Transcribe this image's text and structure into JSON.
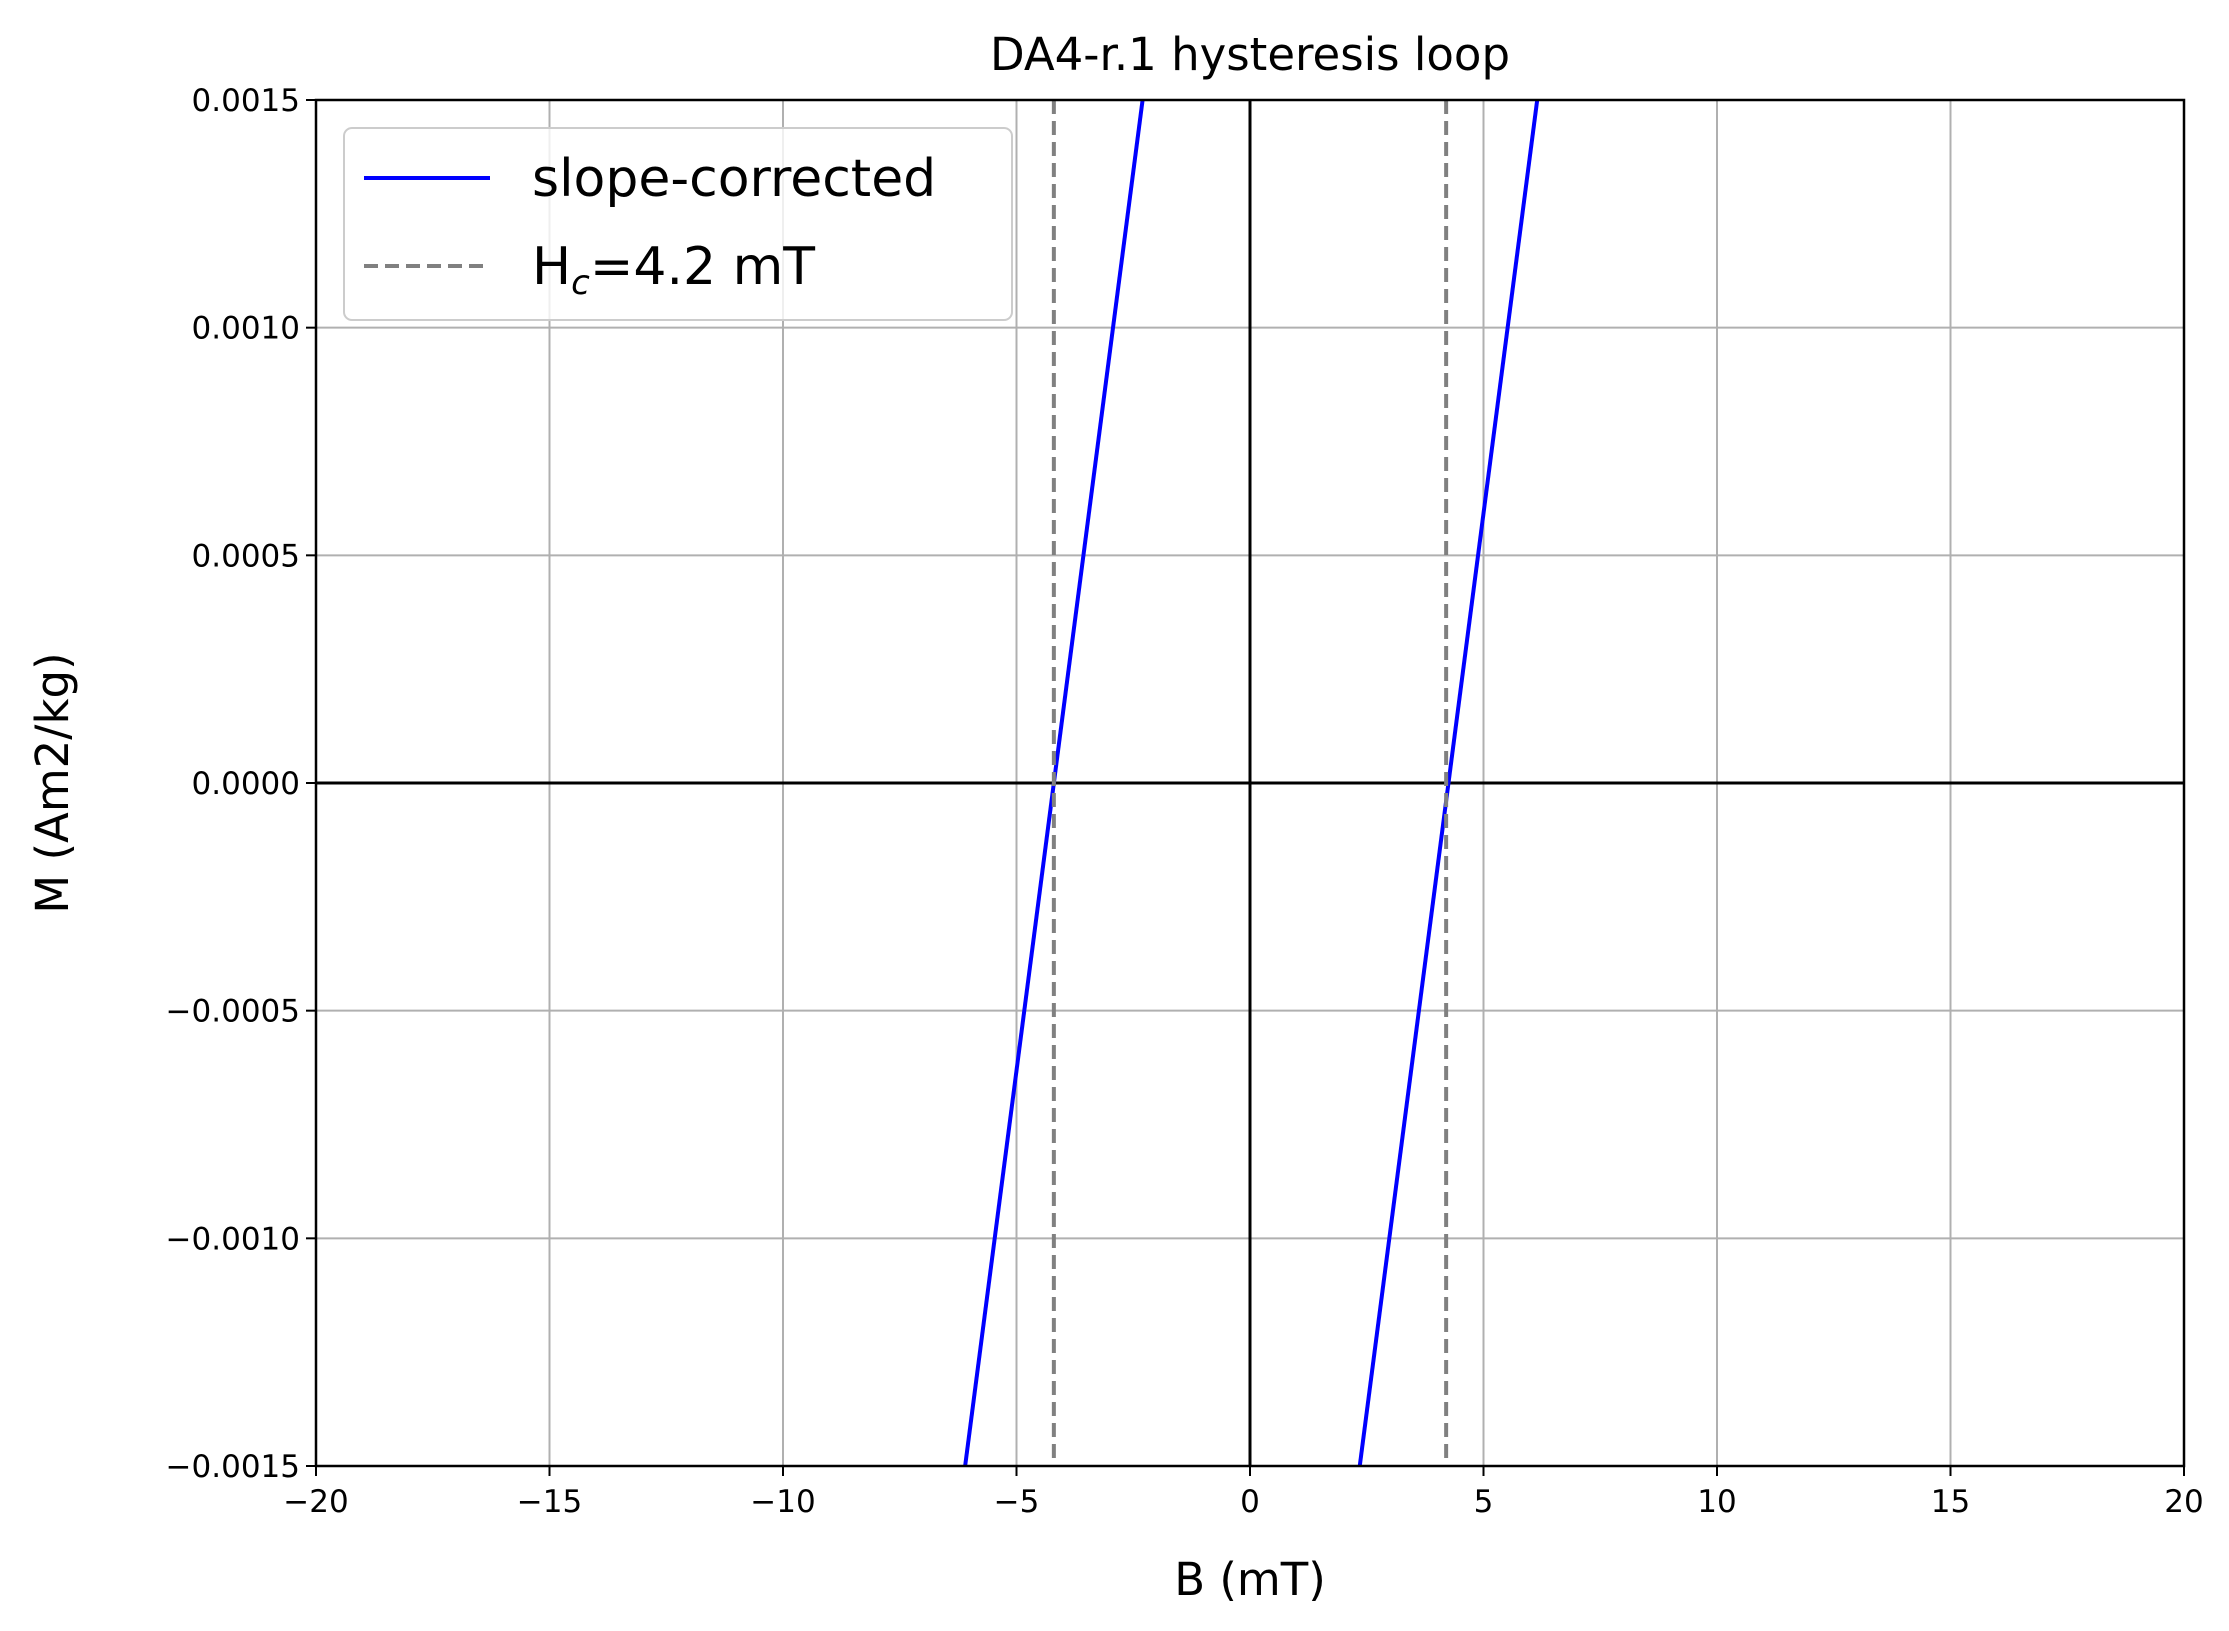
{
  "chart_data": {
    "type": "line",
    "title": "DA4-r.1 hysteresis loop",
    "xlabel": "B (mT)",
    "ylabel": "M (Am2/kg)",
    "xlim": [
      -20,
      20
    ],
    "ylim": [
      -0.0015,
      0.0015
    ],
    "x_ticks": [
      -20,
      -15,
      -10,
      -5,
      0,
      5,
      10,
      15,
      20
    ],
    "x_tick_labels": [
      "−20",
      "−15",
      "−10",
      "−5",
      "0",
      "5",
      "10",
      "15",
      "20"
    ],
    "y_ticks": [
      -0.0015,
      -0.001,
      -0.0005,
      0,
      0.0005,
      0.001,
      0.0015
    ],
    "y_tick_labels": [
      "−0.0015",
      "−0.0010",
      "−0.0005",
      "0.0000",
      "0.0005",
      "0.0010",
      "0.0015"
    ],
    "grid": true,
    "zero_lines": true,
    "legend_position": "upper-left",
    "series": [
      {
        "name": "slope-corrected",
        "color": "#0000ff",
        "style": "solid",
        "segments": [
          {
            "x": [
              -6.1,
              -2.3
            ],
            "y": [
              -0.0015,
              0.0015
            ]
          },
          {
            "x": [
              2.35,
              6.15
            ],
            "y": [
              -0.0015,
              0.0015
            ]
          }
        ]
      },
      {
        "name": "H_c=4.2 mT",
        "legend_main": "H",
        "legend_sub": "c",
        "legend_rest": "=4.2 mT",
        "color": "#808080",
        "style": "dashed",
        "vlines": [
          -4.2,
          4.2
        ]
      }
    ]
  }
}
